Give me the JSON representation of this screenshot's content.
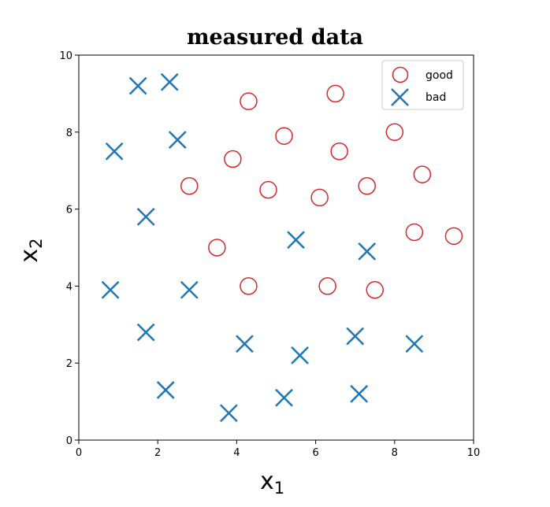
{
  "chart_data": {
    "type": "scatter",
    "title": "measured data",
    "xlabel": {
      "base": "x",
      "sub": "1"
    },
    "ylabel": {
      "base": "x",
      "sub": "2"
    },
    "xlim": [
      0,
      10
    ],
    "ylim": [
      0,
      10
    ],
    "xticks": [
      "0",
      "2",
      "4",
      "6",
      "8",
      "10"
    ],
    "yticks": [
      "0",
      "2",
      "4",
      "6",
      "8",
      "10"
    ],
    "grid": false,
    "legend_position": "top-right",
    "series": [
      {
        "name": "good",
        "marker": "circle",
        "color": "#d62728",
        "points": [
          [
            4.3,
            8.8
          ],
          [
            6.5,
            9.0
          ],
          [
            5.2,
            7.9
          ],
          [
            8.0,
            8.0
          ],
          [
            3.9,
            7.3
          ],
          [
            6.6,
            7.5
          ],
          [
            2.8,
            6.6
          ],
          [
            4.8,
            6.5
          ],
          [
            6.1,
            6.3
          ],
          [
            7.3,
            6.6
          ],
          [
            8.7,
            6.9
          ],
          [
            3.5,
            5.0
          ],
          [
            8.5,
            5.4
          ],
          [
            9.5,
            5.3
          ],
          [
            4.3,
            4.0
          ],
          [
            6.3,
            4.0
          ],
          [
            7.5,
            3.9
          ]
        ]
      },
      {
        "name": "bad",
        "marker": "x",
        "color": "#1f77b4",
        "points": [
          [
            1.5,
            9.2
          ],
          [
            2.3,
            9.3
          ],
          [
            0.9,
            7.5
          ],
          [
            2.5,
            7.8
          ],
          [
            1.7,
            5.8
          ],
          [
            5.5,
            5.2
          ],
          [
            7.3,
            4.9
          ],
          [
            0.8,
            3.9
          ],
          [
            2.8,
            3.9
          ],
          [
            1.7,
            2.8
          ],
          [
            4.2,
            2.5
          ],
          [
            5.6,
            2.2
          ],
          [
            7.0,
            2.7
          ],
          [
            8.5,
            2.5
          ],
          [
            2.2,
            1.3
          ],
          [
            3.8,
            0.7
          ],
          [
            5.2,
            1.1
          ],
          [
            7.1,
            1.2
          ]
        ]
      }
    ]
  }
}
